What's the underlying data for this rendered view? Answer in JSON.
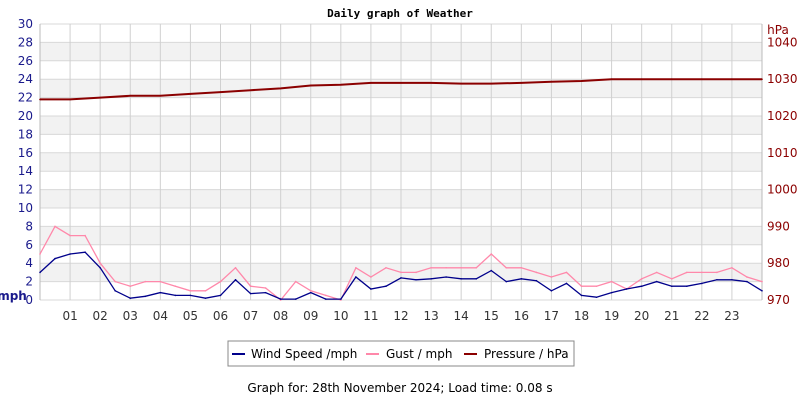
{
  "chart_data": {
    "type": "line",
    "title": "Daily graph of Weather",
    "left_axis": {
      "label": "mph",
      "ylim": [
        0,
        30
      ],
      "ticks": [
        0,
        2,
        4,
        6,
        8,
        10,
        12,
        14,
        16,
        18,
        20,
        22,
        24,
        26,
        28,
        30
      ],
      "color": "#1a1a8c"
    },
    "right_axis": {
      "label": "hPa",
      "ylim": [
        970,
        1045
      ],
      "ticks": [
        970,
        980,
        990,
        1000,
        1010,
        1020,
        1030,
        1040
      ],
      "color": "#8b0000"
    },
    "x_axis": {
      "xlim": [
        0,
        24
      ],
      "tick_labels": [
        "01",
        "02",
        "03",
        "04",
        "05",
        "06",
        "07",
        "08",
        "09",
        "10",
        "11",
        "12",
        "13",
        "14",
        "15",
        "16",
        "17",
        "18",
        "19",
        "20",
        "21",
        "22",
        "23"
      ]
    },
    "grid": true,
    "legend_placement": "bottom",
    "series": [
      {
        "name": "Wind Speed /mph",
        "axis": "left",
        "color": "#00008b",
        "x": [
          0,
          0.5,
          1,
          1.5,
          2,
          2.5,
          3,
          3.5,
          4,
          4.5,
          5,
          5.5,
          6,
          6.5,
          7,
          7.5,
          8,
          8.5,
          9,
          9.5,
          10,
          10.5,
          11,
          11.5,
          12,
          12.5,
          13,
          13.5,
          14,
          14.5,
          15,
          15.5,
          16,
          16.5,
          17,
          17.5,
          18,
          18.5,
          19,
          19.5,
          20,
          20.5,
          21,
          21.5,
          22,
          22.5,
          23,
          23.5,
          24
        ],
        "values": [
          3,
          4.5,
          5,
          5.2,
          3.5,
          1,
          0.2,
          0.4,
          0.8,
          0.5,
          0.5,
          0.2,
          0.5,
          2.2,
          0.7,
          0.8,
          0.1,
          0.1,
          0.8,
          0.1,
          0.1,
          2.5,
          1.2,
          1.5,
          2.4,
          2.2,
          2.3,
          2.5,
          2.3,
          2.3,
          3.2,
          2.0,
          2.3,
          2.1,
          1.0,
          1.8,
          0.5,
          0.3,
          0.8,
          1.2,
          1.5,
          2.0,
          1.5,
          1.5,
          1.8,
          2.2,
          2.2,
          2.0,
          1.0
        ]
      },
      {
        "name": "Gust / mph",
        "axis": "left",
        "color": "#ff88aa",
        "x": [
          0,
          0.5,
          1,
          1.5,
          2,
          2.5,
          3,
          3.5,
          4,
          4.5,
          5,
          5.5,
          6,
          6.5,
          7,
          7.5,
          8,
          8.5,
          9,
          9.5,
          10,
          10.5,
          11,
          11.5,
          12,
          12.5,
          13,
          13.5,
          14,
          14.5,
          15,
          15.5,
          16,
          16.5,
          17,
          17.5,
          18,
          18.5,
          19,
          19.5,
          20,
          20.5,
          21,
          21.5,
          22,
          22.5,
          23,
          23.5,
          24
        ],
        "values": [
          5,
          8,
          7,
          7,
          4,
          2,
          1.5,
          2,
          2,
          1.5,
          1,
          1,
          2,
          3.5,
          1.5,
          1.3,
          0,
          2,
          1,
          0.5,
          0,
          3.5,
          2.5,
          3.5,
          3,
          3,
          3.5,
          3.5,
          3.5,
          3.5,
          5,
          3.5,
          3.5,
          3,
          2.5,
          3,
          1.5,
          1.5,
          2,
          1.2,
          2.3,
          3,
          2.3,
          3,
          3,
          3,
          3.5,
          2.5,
          2
        ]
      },
      {
        "name": "Pressure / hPa",
        "axis": "right",
        "color": "#8b0000",
        "x": [
          0,
          1,
          2,
          3,
          4,
          5,
          6,
          7,
          8,
          9,
          10,
          11,
          12,
          13,
          14,
          15,
          16,
          17,
          18,
          19,
          20,
          21,
          22,
          23,
          24
        ],
        "values": [
          1024.5,
          1024.5,
          1025,
          1025.5,
          1025.5,
          1026,
          1026.5,
          1027,
          1027.5,
          1028.3,
          1028.5,
          1029,
          1029,
          1029,
          1028.8,
          1028.8,
          1029,
          1029.3,
          1029.5,
          1030,
          1030,
          1030,
          1030,
          1030,
          1030
        ]
      }
    ]
  },
  "footer": "Graph for: 28th November 2024; Load time: 0.08 s"
}
